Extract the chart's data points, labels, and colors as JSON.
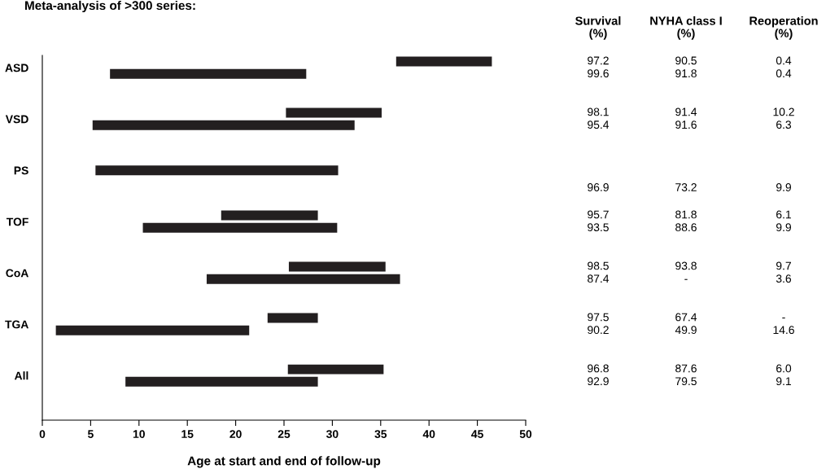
{
  "chart_data": {
    "type": "bar",
    "orientation": "horizontal",
    "title": "Meta-analysis of >300 series:",
    "xlabel": "Age at start and end of follow-up",
    "categories": [
      "ASD",
      "VSD",
      "PS",
      "TOF",
      "CoA",
      "TGA",
      "All"
    ],
    "series": [
      {
        "color": "#231f20",
        "base": [
          36.6,
          25.2,
          null,
          18.5,
          25.5,
          23.3,
          25.4
        ],
        "values": [
          9.9,
          9.9,
          null,
          10.0,
          10.0,
          5.2,
          9.9
        ]
      },
      {
        "color": "#231f20",
        "base": [
          7.0,
          5.2,
          5.5,
          10.4,
          17.0,
          1.4,
          8.6
        ],
        "values": [
          20.3,
          27.1,
          25.1,
          20.1,
          20.0,
          20.0,
          19.9
        ]
      }
    ],
    "xlim": [
      0,
      50
    ],
    "xticks": [
      0,
      5,
      10,
      15,
      20,
      25,
      30,
      35,
      40,
      45,
      50
    ],
    "grid": false,
    "legend": false,
    "annotations": [
      "Survival\n(%)",
      "NYHA class I\n(%)",
      "Reoperation\n(%)",
      "97.2",
      "90.5",
      "0.4",
      "99.6",
      "91.8",
      "0.4",
      "98.1",
      "91.4",
      "10.2",
      "95.4",
      "91.6",
      "6.3",
      "96.9",
      "73.2",
      "9.9",
      "95.7",
      "81.8",
      "6.1",
      "93.5",
      "88.6",
      "9.9",
      "98.5",
      "93.8",
      "9.7",
      "87.4",
      "-",
      "3.6",
      "97.5",
      "67.4",
      "-",
      "90.2",
      "49.9",
      "14.6",
      "96.8",
      "87.6",
      "6.0",
      "92.9",
      "79.5",
      "9.1"
    ]
  }
}
